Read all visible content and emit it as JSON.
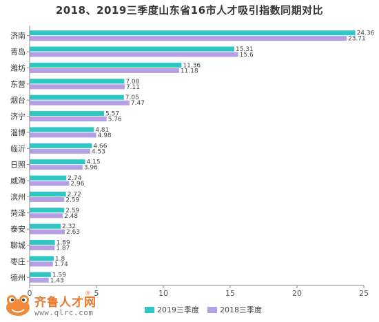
{
  "title": "2018、2019三季度山东省16市人才吸引指数同期对比",
  "logo": {
    "name": "齐鲁人才",
    "suffix": "网",
    "registered_mark": "®",
    "url": "www.qlrc.com",
    "icon": "frog-mascot-icon",
    "color": "#e9792c"
  },
  "chart_data": {
    "type": "bar",
    "orientation": "horizontal",
    "title": "2018、2019三季度山东省16市人才吸引指数同期对比",
    "categories": [
      "济南",
      "青岛",
      "潍坊",
      "东营",
      "烟台",
      "济宁",
      "淄博",
      "临沂",
      "日照",
      "威海",
      "滨州",
      "菏泽",
      "泰安",
      "聊城",
      "枣庄",
      "德州"
    ],
    "series": [
      {
        "name": "2019三季度",
        "color": "#2ec7c4",
        "values": [
          24.36,
          15.31,
          11.36,
          7.08,
          7.05,
          5.57,
          4.81,
          4.66,
          4.15,
          2.74,
          2.72,
          2.59,
          2.32,
          1.89,
          1.8,
          1.59
        ]
      },
      {
        "name": "2018三季度",
        "color": "#b5a0e6",
        "values": [
          23.71,
          15.6,
          11.18,
          7.11,
          7.47,
          5.76,
          4.98,
          4.53,
          3.96,
          2.96,
          2.59,
          2.48,
          2.63,
          1.87,
          1.74,
          1.43
        ]
      }
    ],
    "xlim": [
      0,
      25
    ],
    "xticks": [
      0,
      5,
      10,
      15,
      20,
      25
    ],
    "grid": false,
    "legend_position": "bottom"
  }
}
